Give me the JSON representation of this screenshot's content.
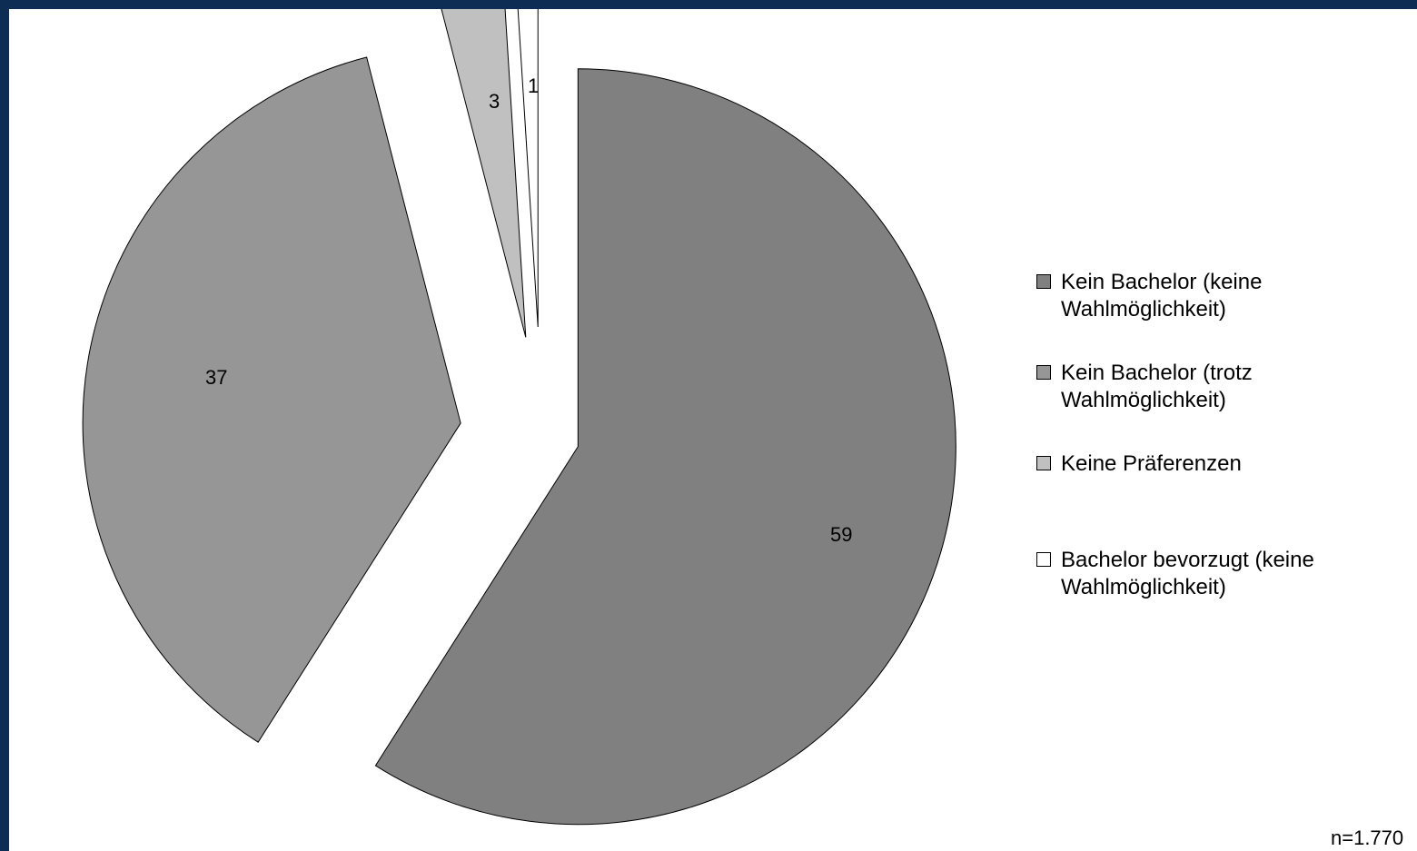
{
  "chart_data": {
    "type": "pie",
    "title": "",
    "slices": [
      {
        "label": "Kein Bachelor (keine Wahlmöglichkeit)",
        "value": 59,
        "color": "#808080"
      },
      {
        "label": "Kein Bachelor (trotz Wahlmöglichkeit)",
        "value": 37,
        "color": "#969696"
      },
      {
        "label": "Keine Präferenzen",
        "value": 3,
        "color": "#c0c0c0"
      },
      {
        "label": "Bachelor bevorzugt (keine Wahlmöglichkeit)",
        "value": 1,
        "color": "#ffffff"
      }
    ],
    "data_labels": [
      "59",
      "37",
      "3",
      "1"
    ],
    "exploded": true,
    "legend_position": "right",
    "note": "n=1.770"
  },
  "colors": {
    "frame": "#0d2d55",
    "background": "#ffffff",
    "outline": "#000000"
  }
}
